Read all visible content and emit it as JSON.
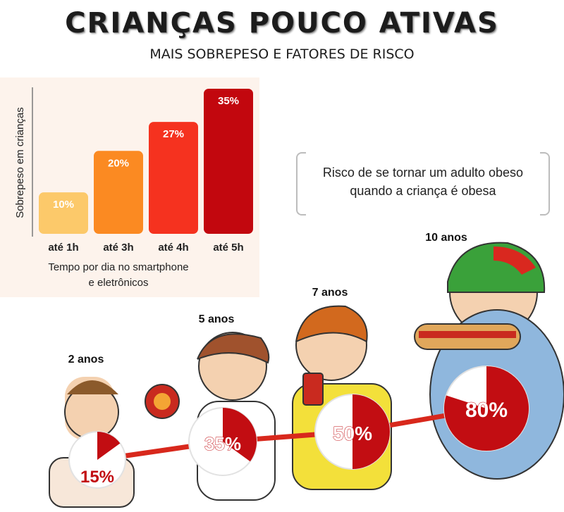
{
  "header": {
    "title": "CRIANÇAS POUCO ATIVAS",
    "subtitle": "MAIS SOBREPESO E FATORES DE RISCO"
  },
  "chart_data": [
    {
      "type": "bar",
      "ylabel": "Sobrepeso em crianças",
      "xlabel_lines": [
        "Tempo por dia no smartphone",
        "e eletrônicos"
      ],
      "categories": [
        "até 1h",
        "até 3h",
        "até 4h",
        "até 5h"
      ],
      "values": [
        10,
        20,
        27,
        35
      ],
      "value_labels": [
        "10%",
        "20%",
        "27%",
        "35%"
      ],
      "ylim": [
        0,
        35
      ],
      "colors": [
        "#fcc96a",
        "#fb8a22",
        "#f5321f",
        "#c2070e"
      ],
      "value_label_colors": [
        "#ffffff",
        "#ffffff",
        "#ffffff",
        "#ffffff"
      ]
    },
    {
      "type": "pie",
      "caption_lines": [
        "Risco de se tornar um adulto obeso",
        "quando a criança é obesa"
      ],
      "categories": [
        "2 anos",
        "5 anos",
        "7 anos",
        "10 anos"
      ],
      "values": [
        15,
        35,
        50,
        80
      ],
      "value_labels": [
        "15%",
        "35%",
        "50%",
        "80%"
      ],
      "colors": {
        "filled": "#c20d12",
        "empty": "#ffffff",
        "line": "#d8281c"
      }
    }
  ]
}
